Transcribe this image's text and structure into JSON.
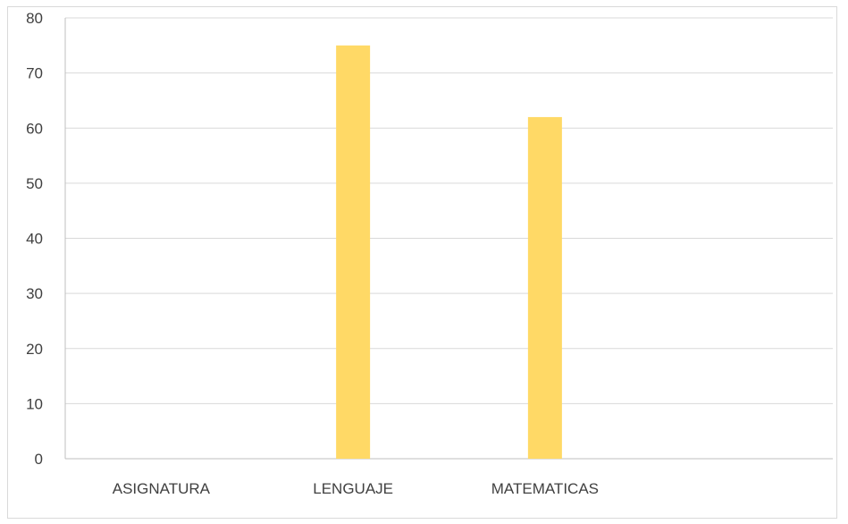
{
  "chart_data": {
    "type": "bar",
    "categories": [
      "ASIGNATURA",
      "LENGUAJE",
      "MATEMATICAS",
      ""
    ],
    "values": [
      null,
      75,
      62,
      null
    ],
    "ylim": [
      0,
      80
    ],
    "yticks": [
      0,
      10,
      20,
      30,
      40,
      50,
      60,
      70,
      80
    ],
    "grid": true,
    "legend": "none",
    "bar_color": "#FFD966",
    "grid_color": "#d9d9d9",
    "axis_color": "#bfbfbf",
    "text_color": "#404040"
  }
}
